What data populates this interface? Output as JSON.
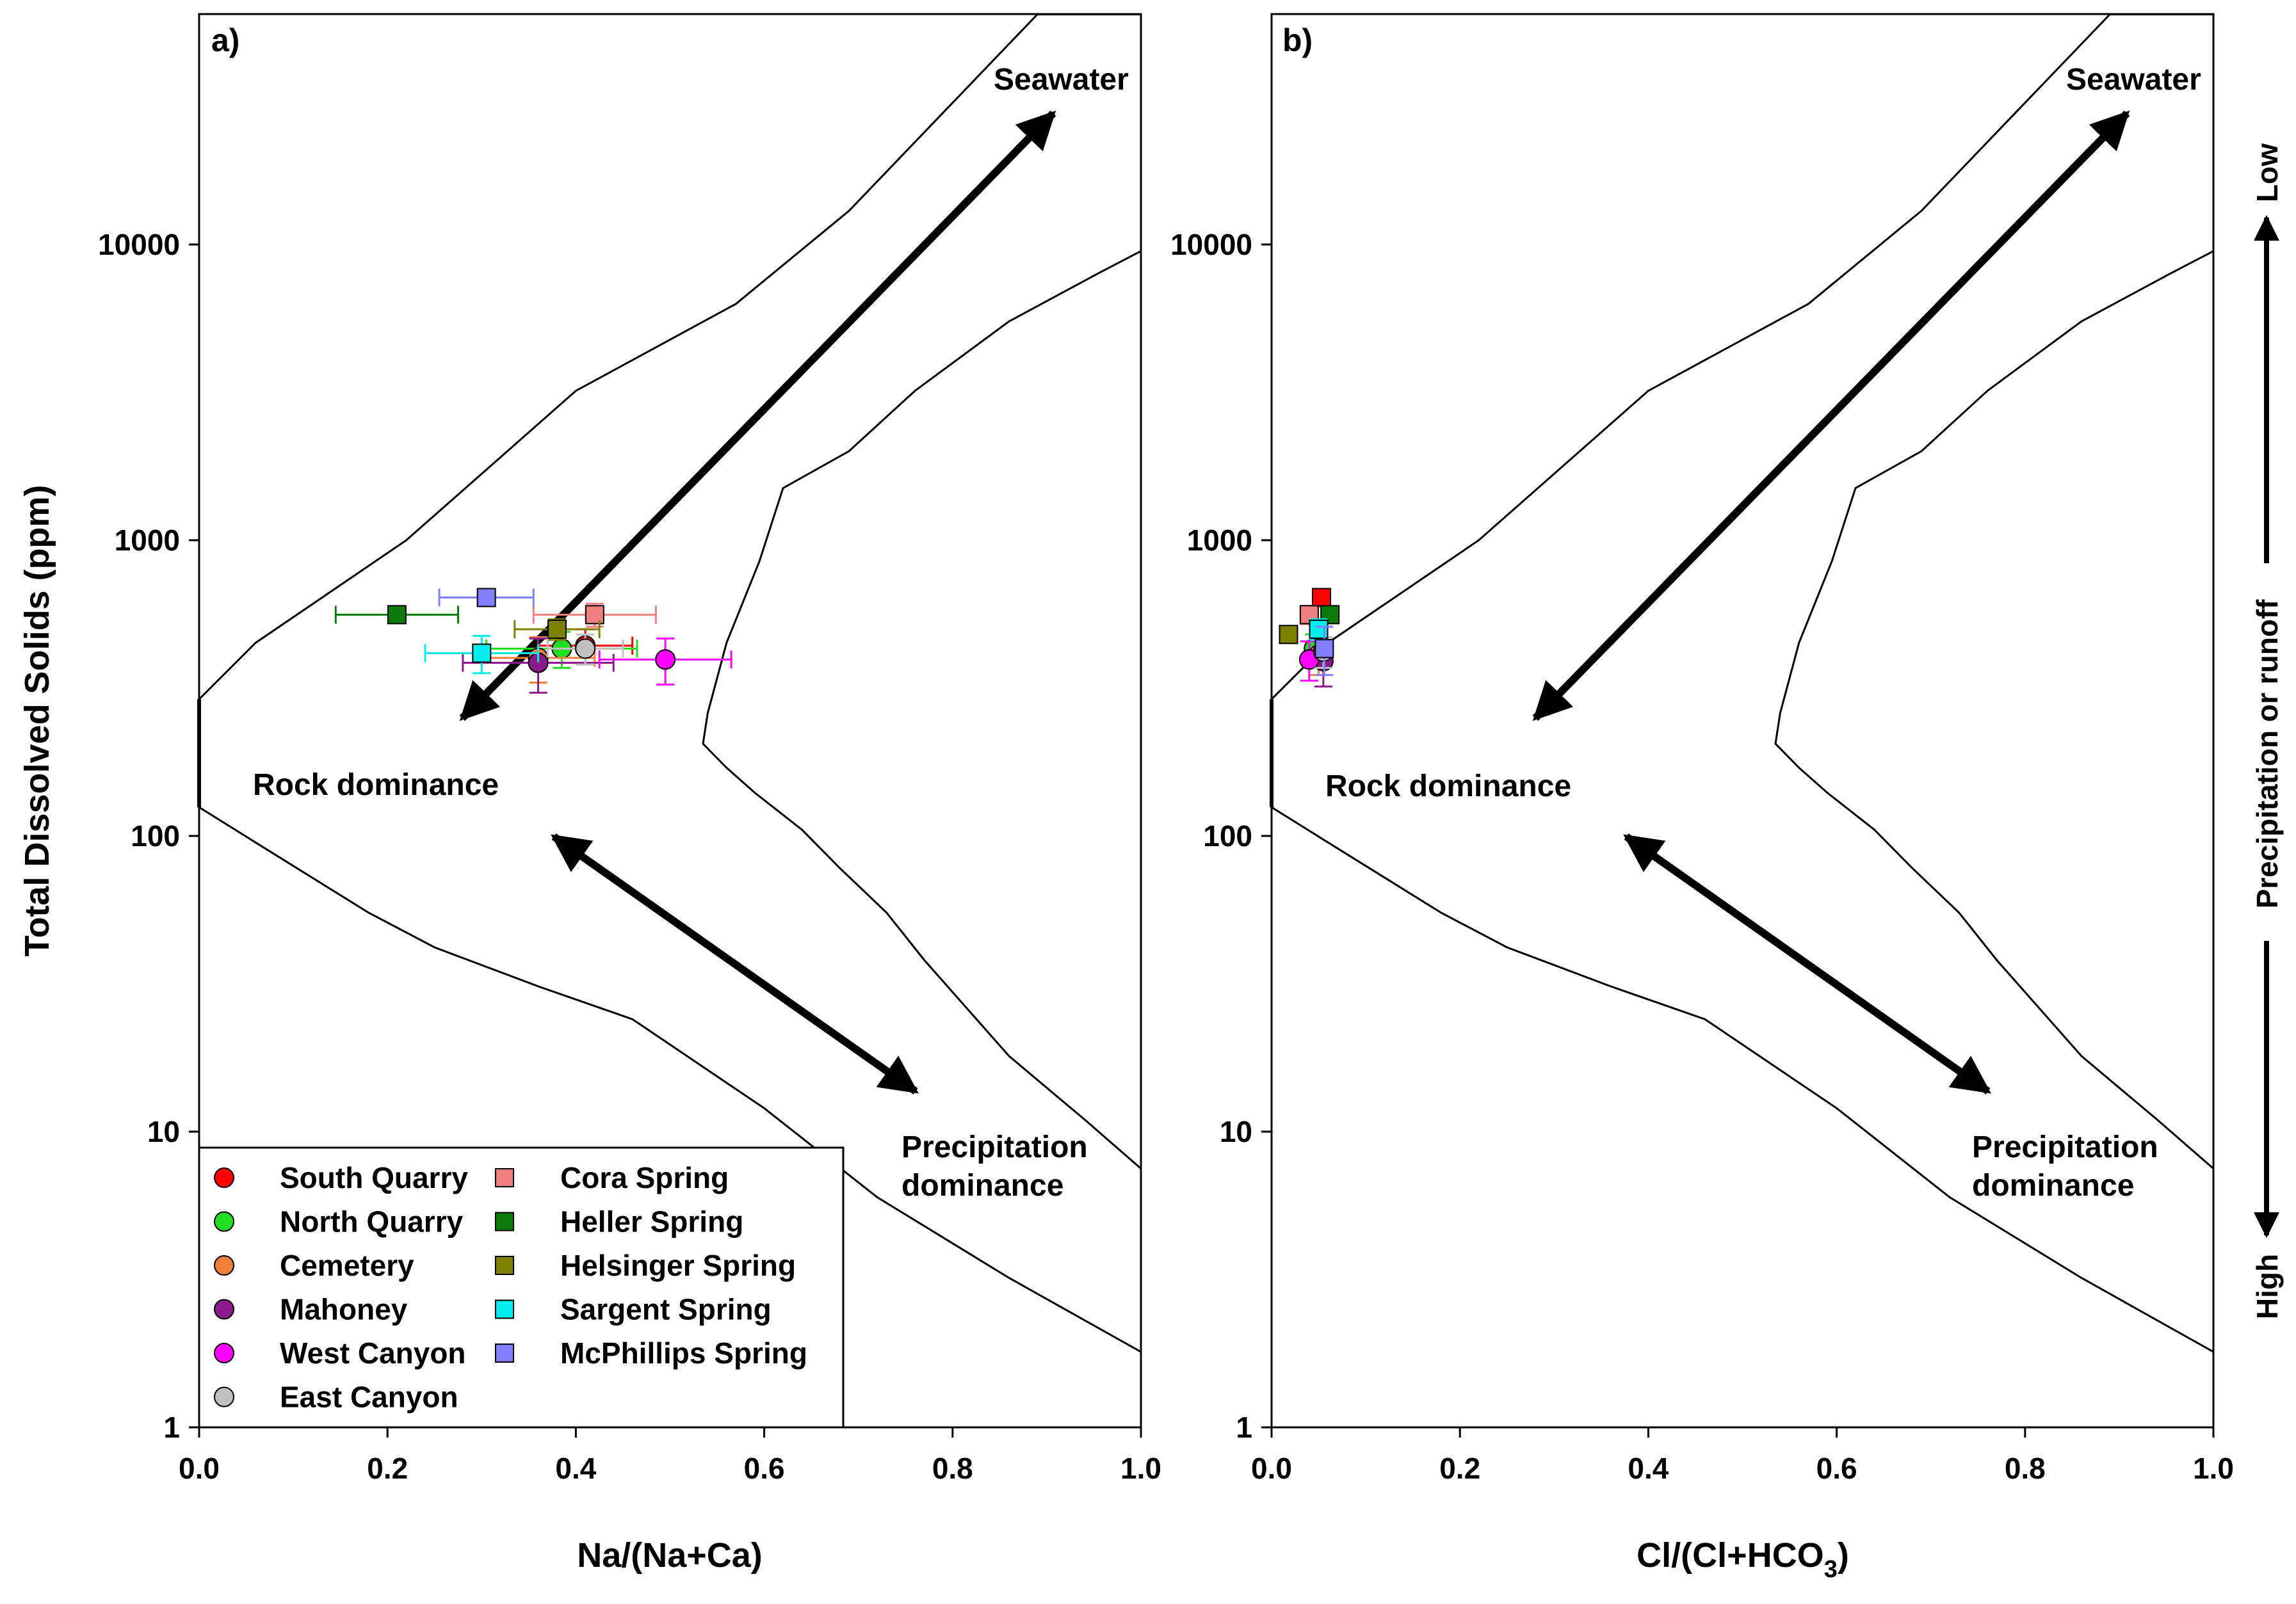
{
  "chart_data": [
    {
      "type": "scatter",
      "panel_label": "a)",
      "xlabel": "Na/(Na+Ca)",
      "ylabel": "Total Dissolved Solids (ppm)",
      "xlim": [
        0,
        1
      ],
      "ylim": [
        1,
        60000
      ],
      "yscale": "log",
      "x_ticks": [
        "0.0",
        "0.2",
        "0.4",
        "0.6",
        "0.8",
        "1.0"
      ],
      "y_ticks": [
        "1",
        "10",
        "100",
        "1000",
        "10000"
      ],
      "annotations": {
        "seawater": "Seawater",
        "rock": "Rock dominance",
        "precip_line1": "Precipitation",
        "precip_line2": "dominance"
      },
      "series": [
        {
          "name": "South Quarry",
          "marker": "circle",
          "color": "#ff0000",
          "x": 0.41,
          "y": 440,
          "xerr": 0.05,
          "yerr": 60
        },
        {
          "name": "North Quarry",
          "marker": "circle",
          "color": "#22dd22",
          "x": 0.385,
          "y": 430,
          "xerr": 0.08,
          "yerr": 60
        },
        {
          "name": "Cemetery",
          "marker": "circle",
          "color": "#f07f3c",
          "x": 0.36,
          "y": 400,
          "xerr": 0.06,
          "yerr": 70
        },
        {
          "name": "Mahoney",
          "marker": "circle",
          "color": "#8b1a8b",
          "x": 0.36,
          "y": 385,
          "xerr": 0.08,
          "yerr": 80
        },
        {
          "name": "West Canyon",
          "marker": "circle",
          "color": "#ff00ff",
          "x": 0.495,
          "y": 395,
          "xerr": 0.07,
          "yerr": 70
        },
        {
          "name": "East Canyon",
          "marker": "circle",
          "color": "#c0c0c0",
          "x": 0.41,
          "y": 430,
          "xerr": 0.04,
          "yerr": 50
        },
        {
          "name": "Cora Spring",
          "marker": "square",
          "color": "#f08080",
          "x": 0.42,
          "y": 560,
          "xerr": 0.065,
          "yerr": 50
        },
        {
          "name": "Heller Spring",
          "marker": "square",
          "color": "#0a7a0a",
          "x": 0.21,
          "y": 560,
          "xerr": 0.065,
          "yerr": 30
        },
        {
          "name": "Helsinger Spring",
          "marker": "square",
          "color": "#808000",
          "x": 0.38,
          "y": 500,
          "xerr": 0.045,
          "yerr": 40
        },
        {
          "name": "Sargent Spring",
          "marker": "square",
          "color": "#00eeee",
          "x": 0.3,
          "y": 415,
          "xerr": 0.06,
          "yerr": 60
        },
        {
          "name": "McPhillips Spring",
          "marker": "square",
          "color": "#8080ff",
          "x": 0.305,
          "y": 640,
          "xerr": 0.05,
          "yerr": 40
        }
      ]
    },
    {
      "type": "scatter",
      "panel_label": "b)",
      "xlabel": "Cl/(Cl+HCO",
      "xlabel_sub": "3",
      "xlabel_end": ")",
      "xlim": [
        0,
        1
      ],
      "ylim": [
        1,
        60000
      ],
      "yscale": "log",
      "x_ticks": [
        "0.0",
        "0.2",
        "0.4",
        "0.6",
        "0.8",
        "1.0"
      ],
      "y_ticks": [
        "1",
        "10",
        "100",
        "1000",
        "10000"
      ],
      "annotations": {
        "seawater": "Seawater",
        "rock": "Rock dominance",
        "precip_line1": "Precipitation",
        "precip_line2": "dominance"
      },
      "side_axis": {
        "top": "Low",
        "middle": "Precipitation or runoff",
        "bottom": "High"
      },
      "series": [
        {
          "name": "South Quarry",
          "marker": "square",
          "color": "#ff0000",
          "x": 0.053,
          "y": 640,
          "xerr": 0.004,
          "yerr": 40
        },
        {
          "name": "North Quarry",
          "marker": "circle",
          "color": "#22dd22",
          "x": 0.045,
          "y": 430,
          "xerr": 0.005,
          "yerr": 50
        },
        {
          "name": "Cemetery",
          "marker": "circle",
          "color": "#f07f3c",
          "x": 0.05,
          "y": 410,
          "xerr": 0.005,
          "yerr": 60
        },
        {
          "name": "Mahoney",
          "marker": "circle",
          "color": "#8b1a8b",
          "x": 0.055,
          "y": 390,
          "xerr": 0.005,
          "yerr": 70
        },
        {
          "name": "West Canyon",
          "marker": "circle",
          "color": "#ff00ff",
          "x": 0.04,
          "y": 395,
          "xerr": 0.005,
          "yerr": 60
        },
        {
          "name": "East Canyon",
          "marker": "circle",
          "color": "#c0c0c0",
          "x": 0.055,
          "y": 420,
          "xerr": 0.005,
          "yerr": 50
        },
        {
          "name": "Cora Spring",
          "marker": "square",
          "color": "#f08080",
          "x": 0.04,
          "y": 560,
          "xerr": 0.004,
          "yerr": 40
        },
        {
          "name": "Heller Spring",
          "marker": "square",
          "color": "#0a7a0a",
          "x": 0.062,
          "y": 560,
          "xerr": 0.004,
          "yerr": 30
        },
        {
          "name": "Helsinger Spring",
          "marker": "square",
          "color": "#808000",
          "x": 0.018,
          "y": 480,
          "xerr": 0.004,
          "yerr": 30
        },
        {
          "name": "Sargent Spring",
          "marker": "square",
          "color": "#00eeee",
          "x": 0.05,
          "y": 500,
          "xerr": 0.004,
          "yerr": 40
        },
        {
          "name": "McPhillips Spring",
          "marker": "square",
          "color": "#8080ff",
          "x": 0.056,
          "y": 430,
          "xerr": 0.005,
          "yerr": 80
        }
      ]
    }
  ],
  "boundary": {
    "upper": [
      [
        0.0,
        290
      ],
      [
        0.06,
        450
      ],
      [
        0.22,
        1000
      ],
      [
        0.4,
        3200
      ],
      [
        0.57,
        6300
      ],
      [
        0.69,
        13000
      ],
      [
        0.89,
        60000
      ],
      [
        1.0,
        60000
      ],
      [
        1.0,
        9500
      ]
    ],
    "inner": [
      [
        1.0,
        9500
      ],
      [
        0.955,
        8000
      ],
      [
        0.86,
        5500
      ],
      [
        0.76,
        3200
      ],
      [
        0.69,
        2000
      ],
      [
        0.62,
        1500
      ],
      [
        0.595,
        850
      ],
      [
        0.56,
        450
      ],
      [
        0.54,
        260
      ],
      [
        0.535,
        205
      ],
      [
        0.56,
        170
      ],
      [
        0.59,
        140
      ],
      [
        0.64,
        105
      ],
      [
        0.68,
        78
      ],
      [
        0.73,
        55
      ],
      [
        0.77,
        38
      ],
      [
        0.86,
        18
      ],
      [
        0.94,
        11
      ],
      [
        1.0,
        7.5
      ]
    ],
    "lower": [
      [
        0.0,
        125
      ],
      [
        0.06,
        95
      ],
      [
        0.18,
        55
      ],
      [
        0.25,
        42
      ],
      [
        0.36,
        31
      ],
      [
        0.46,
        24
      ],
      [
        0.6,
        12
      ],
      [
        0.72,
        6
      ],
      [
        0.86,
        3.2
      ],
      [
        1.0,
        1.8
      ]
    ]
  }
}
